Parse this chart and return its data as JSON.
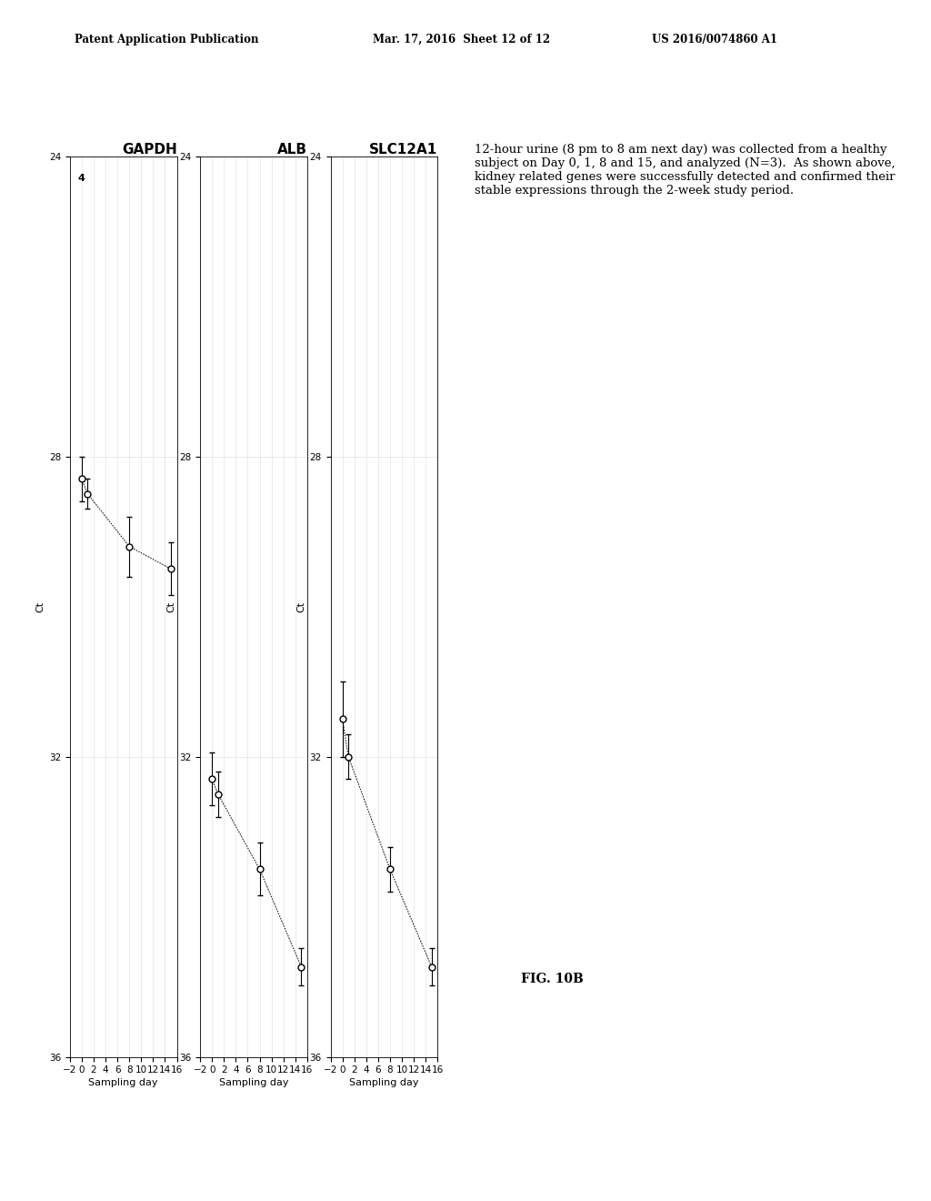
{
  "header_left": "Patent Application Publication",
  "header_center": "Mar. 17, 2016  Sheet 12 of 12",
  "header_right": "US 2016/0074860 A1",
  "fig_label": "FIG. 10B",
  "caption_bold": "12-hour urine (8 pm to 8 am next day) was collected from a healthy\nsubject on Day 0, 1, 8 and 15, and analyzed (N=3).",
  "caption_normal": "  As shown above,\nkidney related genes were successfully detected and confirmed their\nstable expressions through the 2-week study period.",
  "plots": [
    {
      "title": "GAPDH",
      "sampling_days": [
        0,
        1,
        8,
        15
      ],
      "ct_values": [
        28.3,
        28.5,
        29.2,
        29.5
      ],
      "ct_errors": [
        0.3,
        0.2,
        0.4,
        0.35
      ],
      "special_label": "4",
      "special_label_day": 0,
      "special_label_ct": 24.3
    },
    {
      "title": "ALB",
      "sampling_days": [
        0,
        1,
        8,
        15
      ],
      "ct_values": [
        32.3,
        32.5,
        33.5,
        34.8
      ],
      "ct_errors": [
        0.35,
        0.3,
        0.35,
        0.25
      ],
      "special_label": null
    },
    {
      "title": "SLC12A1",
      "sampling_days": [
        0,
        1,
        8,
        15
      ],
      "ct_values": [
        31.5,
        32.0,
        33.5,
        34.8
      ],
      "ct_errors": [
        0.5,
        0.3,
        0.3,
        0.25
      ],
      "special_label": null
    }
  ],
  "ct_lim": [
    24,
    36
  ],
  "day_lim": [
    -2,
    16
  ],
  "ct_ticks": [
    24,
    28,
    32,
    36
  ],
  "day_ticks": [
    -2,
    0,
    2,
    4,
    6,
    8,
    10,
    12,
    14,
    16
  ],
  "xlabel": "Sampling day",
  "ylabel": "Ct",
  "background_color": "#ffffff"
}
